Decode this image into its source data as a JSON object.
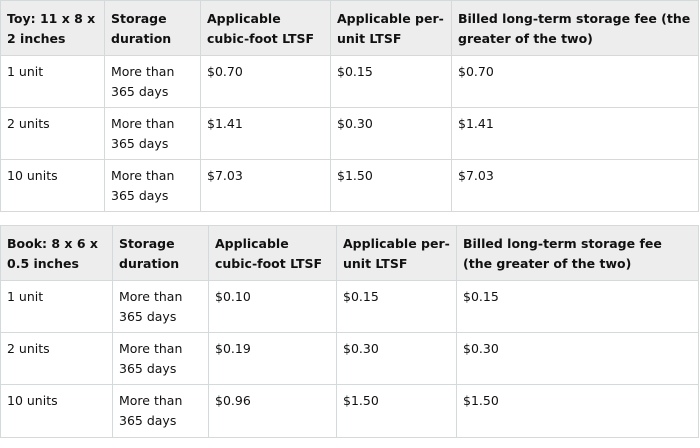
{
  "tables": [
    {
      "id": "toy",
      "headers": [
        "Toy: 11 x 8 x 2 inches",
        "Storage duration",
        "Applicable cubic-foot LTSF",
        "Applicable per-unit LTSF",
        "Billed long-term storage fee (the greater of the two)"
      ],
      "rows": [
        [
          "1 unit",
          "More than 365 days",
          "$0.70",
          "$0.15",
          "$0.70"
        ],
        [
          "2 units",
          "More than 365 days",
          "$1.41",
          "$0.30",
          "$1.41"
        ],
        [
          "10 units",
          "More than 365 days",
          "$7.03",
          "$1.50",
          "$7.03"
        ]
      ]
    },
    {
      "id": "book",
      "headers": [
        "Book: 8 x 6 x 0.5 inches",
        "Storage duration",
        "Applicable cubic-foot LTSF",
        "Applicable per-unit LTSF",
        "Billed long-term storage fee (the greater of the two)"
      ],
      "rows": [
        [
          "1 unit",
          "More than 365 days",
          "$0.10",
          "$0.15",
          "$0.15"
        ],
        [
          "2 units",
          "More than 365 days",
          "$0.19",
          "$0.30",
          "$0.30"
        ],
        [
          "10 units",
          "More than 365 days",
          "$0.96",
          "$1.50",
          "$1.50"
        ]
      ]
    }
  ]
}
